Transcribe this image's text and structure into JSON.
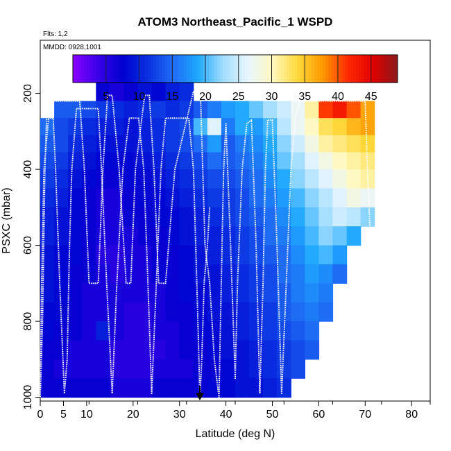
{
  "chart_data": {
    "type": "heatmap",
    "title": "ATOM3 Northeast_Pacific_1 WSPD",
    "flights_label": "Flts: 1,2",
    "dates_label": "MMDD: 0928,1001",
    "xlabel": "Latitude (deg N)",
    "ylabel": "PSXC (mbar)",
    "xlim": [
      0,
      84
    ],
    "ylim": [
      1010,
      60
    ],
    "x_ticks": [
      0,
      5,
      10,
      20,
      30,
      40,
      50,
      60,
      70,
      80
    ],
    "y_ticks": [
      200,
      400,
      600,
      800,
      1000
    ],
    "colorbar": {
      "range": [
        0,
        49
      ],
      "ticks": [
        5,
        10,
        15,
        20,
        25,
        30,
        35,
        40,
        45
      ],
      "colors": [
        "#8a00ff",
        "#3a00e8",
        "#0000d0",
        "#0a2fe0",
        "#1e6cf4",
        "#1ea8ff",
        "#9fdcff",
        "#e8f6ff",
        "#fff8c0",
        "#ffd83a",
        "#ff9a00",
        "#ff2a00",
        "#e00000",
        "#8b1a1a"
      ]
    },
    "bins": {
      "lat_edges": [
        0,
        3,
        6,
        9,
        12,
        15,
        18,
        21,
        24,
        27,
        30,
        33,
        36,
        39,
        42,
        45,
        48,
        51,
        54,
        57,
        60,
        63,
        66,
        69,
        72
      ],
      "pressure_edges": [
        170,
        220,
        265,
        310,
        355,
        400,
        450,
        500,
        550,
        600,
        650,
        700,
        750,
        800,
        850,
        900,
        950,
        1000
      ],
      "wspd": [
        [
          null,
          null,
          null,
          null,
          7,
          6,
          7,
          9,
          8,
          10,
          11,
          null,
          null,
          null,
          null,
          null,
          null,
          null,
          null,
          null,
          null,
          null,
          null,
          null
        ],
        [
          null,
          14,
          14,
          13,
          12,
          11,
          10,
          11,
          12,
          11,
          12,
          14,
          16,
          18,
          19,
          21,
          23,
          25,
          27,
          31,
          41,
          43,
          40,
          37
        ],
        [
          15,
          13,
          12,
          11,
          10,
          10,
          9,
          10,
          11,
          12,
          13,
          20,
          26,
          16,
          19,
          18,
          20,
          24,
          27,
          30,
          33,
          34,
          36,
          37
        ],
        [
          14,
          13,
          11,
          10,
          9,
          9,
          9,
          10,
          11,
          12,
          13,
          15,
          18,
          14,
          16,
          17,
          19,
          22,
          25,
          28,
          31,
          32,
          33,
          34
        ],
        [
          13,
          12,
          10,
          9,
          8,
          8,
          8,
          9,
          10,
          11,
          12,
          13,
          15,
          14,
          15,
          16,
          18,
          21,
          23,
          26,
          28,
          30,
          31,
          32
        ],
        [
          12,
          11,
          9,
          8,
          7,
          7,
          8,
          8,
          9,
          10,
          11,
          12,
          13,
          13,
          14,
          15,
          17,
          19,
          22,
          24,
          26,
          28,
          30,
          31
        ],
        [
          11,
          10,
          8,
          7,
          6,
          6,
          7,
          8,
          8,
          9,
          10,
          11,
          12,
          12,
          13,
          15,
          16,
          18,
          20,
          22,
          24,
          26,
          28,
          27
        ],
        [
          10,
          9,
          8,
          7,
          6,
          6,
          7,
          7,
          8,
          8,
          9,
          10,
          11,
          12,
          13,
          14,
          15,
          17,
          19,
          21,
          23,
          25,
          24,
          22
        ],
        [
          10,
          9,
          8,
          7,
          6,
          6,
          6,
          7,
          7,
          8,
          9,
          10,
          10,
          11,
          12,
          13,
          15,
          16,
          18,
          20,
          22,
          21,
          19,
          null
        ],
        [
          9,
          8,
          8,
          7,
          5,
          5,
          6,
          6,
          7,
          7,
          8,
          9,
          10,
          11,
          12,
          13,
          14,
          15,
          17,
          19,
          20,
          18,
          null,
          null
        ],
        [
          9,
          8,
          7,
          7,
          6,
          5,
          6,
          6,
          7,
          7,
          8,
          9,
          9,
          10,
          11,
          12,
          13,
          15,
          16,
          18,
          17,
          15,
          null,
          null
        ],
        [
          9,
          8,
          7,
          6,
          6,
          6,
          6,
          6,
          6,
          7,
          8,
          8,
          9,
          10,
          11,
          12,
          13,
          14,
          16,
          17,
          16,
          null,
          null,
          null
        ],
        [
          8,
          8,
          7,
          6,
          6,
          6,
          5,
          5,
          6,
          7,
          7,
          8,
          9,
          9,
          10,
          11,
          12,
          14,
          15,
          16,
          15,
          null,
          null,
          null
        ],
        [
          8,
          7,
          7,
          6,
          10,
          6,
          5,
          5,
          6,
          6,
          7,
          8,
          8,
          9,
          10,
          11,
          12,
          13,
          14,
          15,
          null,
          null,
          null,
          null
        ],
        [
          7,
          7,
          6,
          6,
          6,
          5,
          5,
          5,
          5,
          6,
          7,
          7,
          8,
          9,
          9,
          10,
          11,
          12,
          13,
          14,
          null,
          null,
          null,
          null
        ],
        [
          7,
          6,
          6,
          6,
          6,
          5,
          5,
          5,
          6,
          6,
          6,
          7,
          7,
          8,
          9,
          10,
          11,
          12,
          13,
          null,
          null,
          null,
          null,
          null
        ],
        [
          7,
          7,
          7,
          7,
          7,
          6,
          6,
          6,
          7,
          7,
          7,
          7,
          8,
          8,
          9,
          9,
          10,
          11,
          null,
          null,
          null,
          null,
          null,
          null
        ]
      ]
    },
    "flight_tracks": [
      {
        "name": "Flt 1",
        "lat": [
          0,
          0.3,
          0.8,
          1.8,
          2.8,
          3.3,
          4.2,
          5.2,
          5.8,
          6.3,
          6.8,
          7.8,
          9.8,
          11.5,
          12.5,
          13.2,
          14.3,
          15.5,
          16.5,
          17.8,
          19.2,
          20.3,
          21.2,
          22.3,
          23.2,
          24.0,
          25.0,
          26.0,
          27.0,
          28.0,
          29.0,
          30.0,
          31.0,
          32.0,
          33.0,
          33.5,
          34.0,
          34.3,
          34.4,
          34.8,
          35.3,
          36.0,
          36.5
        ],
        "psxc": [
          990,
          700,
          400,
          265,
          265,
          400,
          700,
          990,
          900,
          600,
          400,
          240,
          240,
          240,
          240,
          400,
          700,
          990,
          700,
          400,
          265,
          265,
          265,
          400,
          700,
          990,
          700,
          400,
          265,
          265,
          265,
          265,
          265,
          265,
          400,
          600,
          820,
          960,
          1000,
          900,
          700,
          600,
          500
        ]
      },
      {
        "name": "Flt 2",
        "lat": [
          0,
          0.5,
          1.0,
          1.5,
          8.5,
          9.5,
          10.5,
          12.5,
          13.5,
          14.5,
          15.5,
          17.0,
          18.5,
          19.5,
          20.5,
          22.5,
          23.5,
          24.5,
          25.5,
          27.0,
          29.0,
          33.0,
          34.5,
          35.5,
          36.5,
          37.5,
          38.5,
          39.0,
          39.5,
          40.0,
          41.0,
          42.0,
          42.5,
          43.5,
          44.5,
          45.5,
          46.5,
          47.3,
          48.0,
          48.5,
          49.0,
          50.0,
          51.0,
          52.0,
          53.0,
          54.0,
          55.0,
          56.0,
          61.0,
          66.0,
          70.0,
          70.5,
          71.0
        ],
        "psxc": [
          1000,
          800,
          400,
          220,
          220,
          400,
          700,
          700,
          400,
          205,
          205,
          400,
          700,
          700,
          400,
          205,
          205,
          400,
          700,
          700,
          400,
          195,
          195,
          600,
          700,
          900,
          1000,
          700,
          400,
          280,
          600,
          950,
          700,
          400,
          280,
          270,
          600,
          990,
          700,
          400,
          270,
          270,
          600,
          990,
          700,
          400,
          260,
          220,
          220,
          220,
          220,
          400,
          550
        ]
      }
    ]
  }
}
